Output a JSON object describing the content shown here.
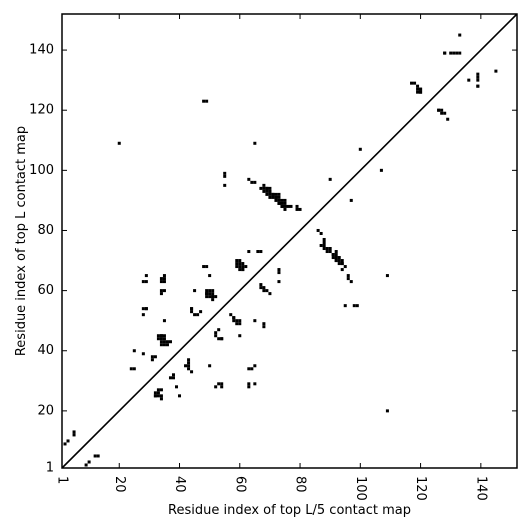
{
  "chart_data": {
    "type": "scatter",
    "title": "",
    "xlabel": "Residue index of top L/5 contact map",
    "ylabel": "Residue index of top L contact map",
    "xlim": [
      1,
      152
    ],
    "ylim": [
      1,
      152
    ],
    "xticks": [
      1,
      20,
      40,
      60,
      80,
      100,
      120,
      140
    ],
    "xtick_labels": [
      "1",
      "20",
      "40",
      "60",
      "80",
      "100",
      "120",
      "140"
    ],
    "yticks": [
      1,
      20,
      40,
      60,
      80,
      100,
      120,
      140
    ],
    "ytick_labels": [
      "1",
      "20",
      "40",
      "60",
      "80",
      "100",
      "120",
      "140"
    ],
    "x_tick_label_rotation": 90,
    "grid": false,
    "diagonal": true,
    "marker": "square",
    "color": "#000000",
    "upper_triangle_points": [
      [
        2,
        9
      ],
      [
        3,
        10
      ],
      [
        5,
        12
      ],
      [
        5,
        13
      ],
      [
        20,
        109
      ],
      [
        25,
        40
      ],
      [
        28,
        39
      ],
      [
        28,
        54
      ],
      [
        28,
        52
      ],
      [
        29,
        54
      ],
      [
        28,
        63
      ],
      [
        29,
        63
      ],
      [
        29,
        65
      ],
      [
        31,
        37
      ],
      [
        31,
        38
      ],
      [
        32,
        38
      ],
      [
        32,
        25
      ],
      [
        34,
        24
      ],
      [
        34,
        25
      ],
      [
        34,
        63
      ],
      [
        34,
        64
      ],
      [
        35,
        63
      ],
      [
        35,
        64
      ],
      [
        35,
        65
      ],
      [
        34,
        59
      ],
      [
        34,
        60
      ],
      [
        35,
        60
      ],
      [
        33,
        45
      ],
      [
        34,
        45
      ],
      [
        35,
        45
      ],
      [
        33,
        44
      ],
      [
        34,
        44
      ],
      [
        35,
        44
      ],
      [
        35,
        50
      ],
      [
        36,
        43
      ],
      [
        37,
        43
      ],
      [
        34,
        43
      ],
      [
        35,
        43
      ],
      [
        34,
        42
      ],
      [
        35,
        42
      ],
      [
        36,
        42
      ],
      [
        44,
        54
      ],
      [
        44,
        53
      ],
      [
        45,
        52
      ],
      [
        46,
        52
      ],
      [
        47,
        53
      ],
      [
        45,
        60
      ],
      [
        48,
        123
      ],
      [
        49,
        123
      ],
      [
        48,
        68
      ],
      [
        49,
        68
      ],
      [
        50,
        65
      ],
      [
        49,
        60
      ],
      [
        50,
        60
      ],
      [
        51,
        60
      ],
      [
        49,
        59
      ],
      [
        50,
        59
      ],
      [
        51,
        59
      ],
      [
        49,
        58
      ],
      [
        50,
        58
      ],
      [
        51,
        58
      ],
      [
        52,
        58
      ],
      [
        51,
        57
      ],
      [
        53,
        29
      ],
      [
        54,
        44
      ],
      [
        55,
        98
      ],
      [
        55,
        99
      ],
      [
        58,
        51
      ],
      [
        59,
        49
      ],
      [
        59,
        70
      ],
      [
        60,
        70
      ],
      [
        59,
        69
      ],
      [
        60,
        69
      ],
      [
        61,
        69
      ],
      [
        59,
        68
      ],
      [
        60,
        68
      ],
      [
        61,
        68
      ],
      [
        62,
        68
      ],
      [
        60,
        67
      ],
      [
        61,
        67
      ],
      [
        63,
        73
      ],
      [
        63,
        97
      ],
      [
        64,
        96
      ],
      [
        65,
        96
      ],
      [
        65,
        109
      ],
      [
        66,
        73
      ],
      [
        67,
        73
      ],
      [
        67,
        61
      ],
      [
        67,
        94
      ],
      [
        68,
        95
      ],
      [
        68,
        94
      ],
      [
        69,
        94
      ],
      [
        70,
        94
      ],
      [
        68,
        93
      ],
      [
        69,
        93
      ],
      [
        70,
        93
      ],
      [
        69,
        92
      ],
      [
        70,
        92
      ],
      [
        71,
        92
      ],
      [
        72,
        92
      ],
      [
        73,
        92
      ],
      [
        70,
        91
      ],
      [
        71,
        91
      ],
      [
        72,
        91
      ],
      [
        73,
        91
      ],
      [
        72,
        90
      ],
      [
        73,
        90
      ],
      [
        74,
        90
      ],
      [
        75,
        90
      ],
      [
        73,
        89
      ],
      [
        74,
        89
      ],
      [
        75,
        89
      ],
      [
        74,
        88
      ],
      [
        75,
        88
      ],
      [
        76,
        88
      ],
      [
        77,
        88
      ],
      [
        79,
        88
      ],
      [
        79,
        87
      ],
      [
        80,
        87
      ],
      [
        87,
        75
      ],
      [
        88,
        74
      ],
      [
        89,
        73
      ],
      [
        90,
        97
      ],
      [
        91,
        72
      ],
      [
        92,
        73
      ],
      [
        92,
        72
      ],
      [
        92,
        71
      ],
      [
        93,
        71
      ],
      [
        92,
        70
      ],
      [
        93,
        70
      ],
      [
        94,
        70
      ],
      [
        94,
        69
      ],
      [
        95,
        55
      ],
      [
        100,
        107
      ],
      [
        117,
        129
      ],
      [
        118,
        129
      ],
      [
        119,
        128
      ],
      [
        119,
        127
      ],
      [
        120,
        127
      ],
      [
        119,
        126
      ],
      [
        120,
        126
      ],
      [
        126,
        120
      ],
      [
        127,
        120
      ],
      [
        128,
        139
      ],
      [
        130,
        139
      ],
      [
        131,
        139
      ],
      [
        132,
        139
      ],
      [
        133,
        139
      ],
      [
        133,
        145
      ],
      [
        139,
        128
      ]
    ],
    "lower_triangle_points": [
      [
        9,
        2
      ],
      [
        10,
        3
      ],
      [
        12,
        5
      ],
      [
        13,
        5
      ],
      [
        109,
        20
      ],
      [
        40,
        25
      ],
      [
        39,
        28
      ],
      [
        54,
        28
      ],
      [
        52,
        28
      ],
      [
        54,
        29
      ],
      [
        63,
        28
      ],
      [
        63,
        29
      ],
      [
        65,
        29
      ],
      [
        37,
        31
      ],
      [
        38,
        31
      ],
      [
        38,
        32
      ],
      [
        25,
        34
      ],
      [
        24,
        34
      ],
      [
        33,
        26
      ],
      [
        33,
        25
      ],
      [
        32,
        25
      ],
      [
        32,
        26
      ],
      [
        33,
        27
      ],
      [
        34,
        27
      ],
      [
        64,
        34
      ],
      [
        63,
        34
      ],
      [
        65,
        35
      ],
      [
        44,
        33
      ],
      [
        43,
        34
      ],
      [
        43,
        35
      ],
      [
        42,
        35
      ],
      [
        43,
        36
      ],
      [
        43,
        37
      ],
      [
        50,
        35
      ],
      [
        54,
        44
      ],
      [
        34,
        45
      ],
      [
        60,
        45
      ],
      [
        53,
        44
      ],
      [
        52,
        45
      ],
      [
        52,
        46
      ],
      [
        53,
        47
      ],
      [
        68,
        48
      ],
      [
        68,
        49
      ],
      [
        65,
        50
      ],
      [
        60,
        49
      ],
      [
        60,
        50
      ],
      [
        59,
        50
      ],
      [
        58,
        50
      ],
      [
        58,
        51
      ],
      [
        57,
        52
      ],
      [
        29,
        54
      ],
      [
        44,
        54
      ],
      [
        98,
        55
      ],
      [
        99,
        55
      ],
      [
        51,
        58
      ],
      [
        49,
        59
      ],
      [
        70,
        59
      ],
      [
        69,
        60
      ],
      [
        68,
        60
      ],
      [
        68,
        61
      ],
      [
        67,
        62
      ],
      [
        73,
        63
      ],
      [
        97,
        63
      ],
      [
        96,
        64
      ],
      [
        96,
        65
      ],
      [
        109,
        65
      ],
      [
        73,
        66
      ],
      [
        73,
        67
      ],
      [
        61,
        67
      ],
      [
        94,
        67
      ],
      [
        95,
        68
      ],
      [
        94,
        69
      ],
      [
        93,
        69
      ],
      [
        92,
        70
      ],
      [
        92,
        71
      ],
      [
        91,
        71
      ],
      [
        91,
        72
      ],
      [
        90,
        73
      ],
      [
        90,
        74
      ],
      [
        89,
        74
      ],
      [
        88,
        75
      ],
      [
        88,
        76
      ],
      [
        88,
        77
      ],
      [
        87,
        79
      ],
      [
        86,
        80
      ],
      [
        75,
        87
      ],
      [
        74,
        88
      ],
      [
        73,
        89
      ],
      [
        97,
        90
      ],
      [
        72,
        91
      ],
      [
        71,
        92
      ],
      [
        70,
        93
      ],
      [
        69,
        94
      ],
      [
        55,
        95
      ],
      [
        107,
        100
      ],
      [
        129,
        117
      ],
      [
        128,
        119
      ],
      [
        127,
        119
      ],
      [
        126,
        120
      ],
      [
        120,
        126
      ],
      [
        120,
        127
      ],
      [
        139,
        128
      ],
      [
        139,
        130
      ],
      [
        139,
        131
      ],
      [
        139,
        132
      ],
      [
        145,
        133
      ],
      [
        128,
        139
      ],
      [
        136,
        130
      ]
    ]
  }
}
